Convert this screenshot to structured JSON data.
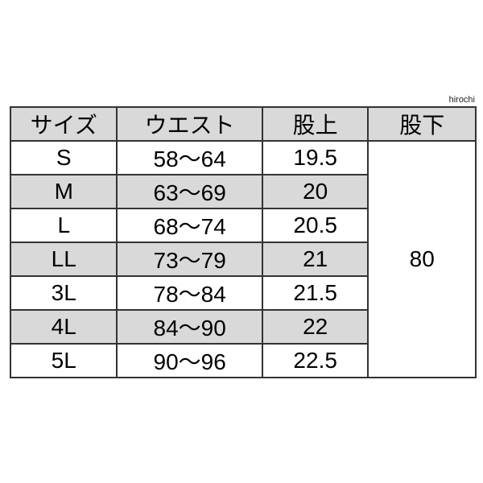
{
  "watermark": "hirochi",
  "table": {
    "headers": [
      "サイズ",
      "ウエスト",
      "股上",
      "股下"
    ],
    "rows": [
      {
        "size": "S",
        "waist": "58〜64",
        "rise": "19.5"
      },
      {
        "size": "M",
        "waist": "63〜69",
        "rise": "20"
      },
      {
        "size": "L",
        "waist": "68〜74",
        "rise": "20.5"
      },
      {
        "size": "LL",
        "waist": "73〜79",
        "rise": "21"
      },
      {
        "size": "3L",
        "waist": "78〜84",
        "rise": "21.5"
      },
      {
        "size": "4L",
        "waist": "84〜90",
        "rise": "22"
      },
      {
        "size": "5L",
        "waist": "90〜96",
        "rise": "22.5"
      }
    ],
    "inseam": "80"
  },
  "colors": {
    "header_bg": "#d9d9d9",
    "alt_row_bg": "#d9d9d9",
    "border": "#333333"
  }
}
